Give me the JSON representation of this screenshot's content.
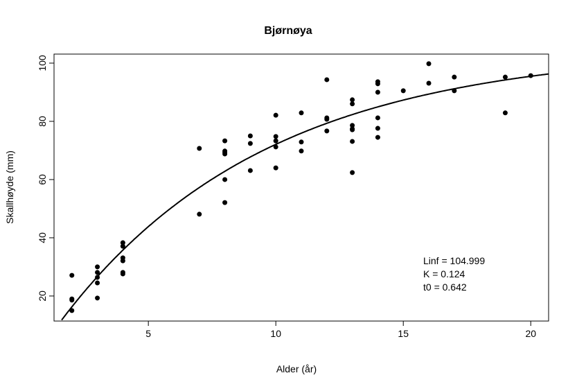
{
  "chart_data": {
    "type": "scatter",
    "title": "Bjørnøya",
    "xlabel": "Alder (år)",
    "ylabel": "Skallhøyde (mm)",
    "xlim": [
      1.3,
      20.7
    ],
    "ylim": [
      11.4,
      103.1
    ],
    "xticks": [
      5,
      10,
      15,
      20
    ],
    "yticks": [
      20,
      40,
      60,
      80,
      100
    ],
    "grid": false,
    "points": [
      [
        2,
        27.1
      ],
      [
        2,
        19.0
      ],
      [
        2,
        18.6
      ],
      [
        2,
        15.0
      ],
      [
        3,
        30.0
      ],
      [
        3,
        28.1
      ],
      [
        3,
        26.4
      ],
      [
        3,
        24.5
      ],
      [
        3,
        19.3
      ],
      [
        4,
        38.3
      ],
      [
        4,
        37.1
      ],
      [
        4,
        33.1
      ],
      [
        4,
        32.1
      ],
      [
        4,
        28.1
      ],
      [
        4,
        27.6
      ],
      [
        7,
        70.7
      ],
      [
        7,
        48.1
      ],
      [
        8,
        73.3
      ],
      [
        8,
        69.8
      ],
      [
        8,
        69.3
      ],
      [
        8,
        68.8
      ],
      [
        8,
        60.0
      ],
      [
        8,
        52.1
      ],
      [
        9,
        75.0
      ],
      [
        9,
        72.4
      ],
      [
        9,
        63.1
      ],
      [
        10,
        82.1
      ],
      [
        10,
        74.8
      ],
      [
        10,
        73.3
      ],
      [
        10,
        71.2
      ],
      [
        10,
        64.0
      ],
      [
        11,
        82.9
      ],
      [
        11,
        72.9
      ],
      [
        11,
        69.8
      ],
      [
        12,
        94.3
      ],
      [
        12,
        81.2
      ],
      [
        12,
        80.7
      ],
      [
        12,
        76.7
      ],
      [
        13,
        87.4
      ],
      [
        13,
        86.0
      ],
      [
        13,
        78.6
      ],
      [
        13,
        77.4
      ],
      [
        13,
        77.1
      ],
      [
        13,
        73.1
      ],
      [
        13,
        62.4
      ],
      [
        14,
        93.6
      ],
      [
        14,
        92.9
      ],
      [
        14,
        90.0
      ],
      [
        14,
        81.2
      ],
      [
        14,
        77.6
      ],
      [
        14,
        74.5
      ],
      [
        15,
        90.5
      ],
      [
        16,
        99.8
      ],
      [
        16,
        93.1
      ],
      [
        17,
        95.2
      ],
      [
        17,
        90.5
      ],
      [
        19,
        95.2
      ],
      [
        19,
        82.9
      ],
      [
        20,
        95.7
      ]
    ],
    "fit": {
      "Linf": 104.999,
      "K": 0.124,
      "t0": 0.642
    },
    "annotations": [
      "Linf = 104.999",
      "K = 0.124",
      "t0 = 0.642"
    ],
    "annotation_placement": "bottom-right"
  }
}
